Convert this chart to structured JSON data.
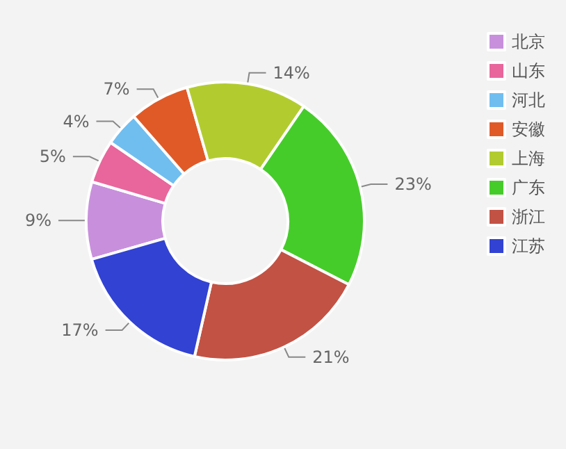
{
  "chart_data": {
    "type": "donut",
    "categories": [
      "北京",
      "山东",
      "河北",
      "安徽",
      "上海",
      "广东",
      "浙江",
      "江苏"
    ],
    "values": [
      9,
      5,
      4,
      7,
      14,
      23,
      21,
      17
    ],
    "value_labels": [
      "9%",
      "5%",
      "4%",
      "7%",
      "14%",
      "23%",
      "21%",
      "17%"
    ],
    "colors": [
      "#c890dc",
      "#e8669c",
      "#70bef0",
      "#e05a28",
      "#b2cc30",
      "#46cc2a",
      "#c25244",
      "#3242d2"
    ],
    "legend": "right"
  }
}
